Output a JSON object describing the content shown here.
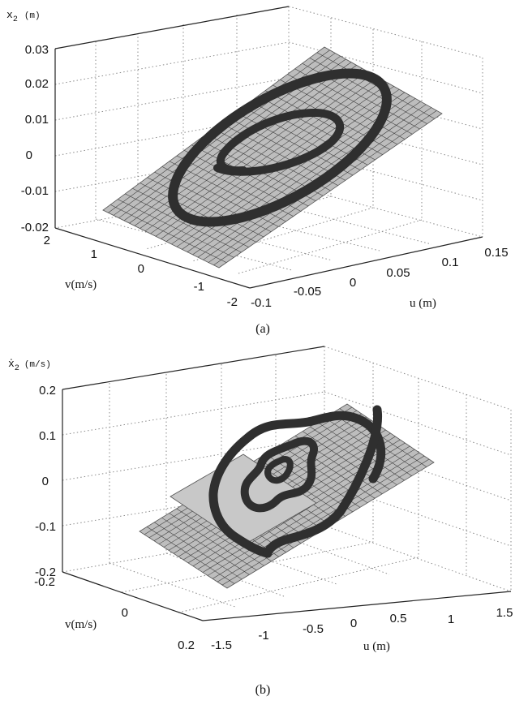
{
  "chart_data": [
    {
      "type": "surface",
      "caption": "(a)",
      "zlabel_main": "x",
      "zlabel_sub": "2",
      "zlabel_unit": "(m)",
      "xlabel": "u (m)",
      "ylabel": "v(m/s)",
      "z_ticks": [
        "0.03",
        "0.02",
        "0.01",
        "0",
        "-0.01",
        "-0.02"
      ],
      "x_ticks": [
        "-0.1",
        "-0.05",
        "0",
        "0.05",
        "0.1",
        "0.15"
      ],
      "y_ticks": [
        "2",
        "1",
        "0",
        "-1",
        "-2"
      ],
      "xlim": [
        -0.1,
        0.15
      ],
      "ylim": [
        -2,
        2
      ],
      "zlim": [
        -0.02,
        0.03
      ],
      "surface": "plane",
      "trajectory": "ellipse_spiral",
      "grid": true
    },
    {
      "type": "surface",
      "caption": "(b)",
      "zlabel_main": "ẋ",
      "zlabel_sub": "2",
      "zlabel_unit": "(m/s)",
      "xlabel": "u (m)",
      "ylabel": "v(m/s)",
      "z_ticks": [
        "0.2",
        "0.1",
        "0",
        "-0.1",
        "-0.2"
      ],
      "x_ticks": [
        "-1.5",
        "-1",
        "-0.5",
        "0",
        "0.5",
        "1",
        "1.5"
      ],
      "y_ticks": [
        "-0.2",
        "0",
        "0.2"
      ],
      "xlim": [
        -1.5,
        1.5
      ],
      "ylim": [
        -0.2,
        0.2
      ],
      "zlim": [
        -0.2,
        0.2
      ],
      "surface": "plane",
      "trajectory": "wavy_spiral",
      "grid": true
    }
  ]
}
